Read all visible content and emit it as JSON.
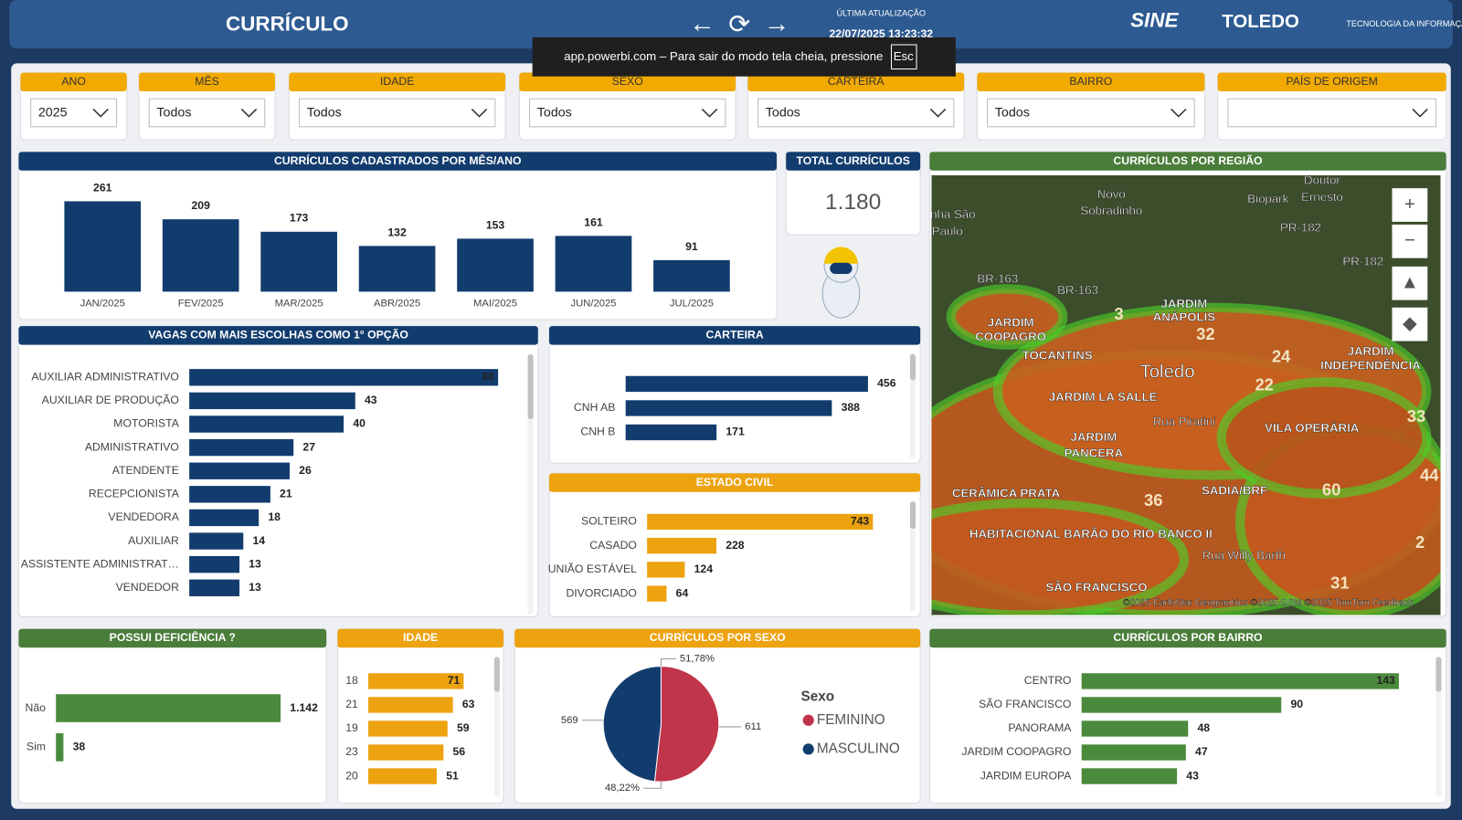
{
  "header": {
    "title": "CURRÍCULO",
    "update_label": "ÚLTIMA ATUALIZAÇÃO",
    "update_value": "22/07/2025 13:23:32",
    "logos": [
      "SINE",
      "TOLEDO",
      "TECNOLOGIA DA INFORMAÇÃO"
    ]
  },
  "toast": {
    "text": "app.powerbi.com – Para sair do modo tela cheia, pressione",
    "key": "Esc"
  },
  "filters": [
    {
      "label": "ANO",
      "value": "2025"
    },
    {
      "label": "MÊS",
      "value": "Todos"
    },
    {
      "label": "IDADE",
      "value": "Todos"
    },
    {
      "label": "SEXO",
      "value": "Todos"
    },
    {
      "label": "CARTEIRA",
      "value": "Todos"
    },
    {
      "label": "BAIRRO",
      "value": "Todos"
    },
    {
      "label": "PAÍS DE ORIGEM"
    }
  ],
  "kpi": {
    "title": "TOTAL CURRÍCULOS",
    "value": "1.180"
  },
  "map": {
    "title": "CURRÍCULOS POR REGIÃO",
    "labels": [
      "Doutor",
      "Ernesto",
      "Novo",
      "Sobradinho",
      "Biopark",
      "nha São",
      "Paulo",
      "PR-182",
      "PR-182",
      "BR-163",
      "BR-163",
      "JARDIM",
      "COOPAGRO",
      "JARDIM",
      "ANÁPOLIS",
      "TOCANTINS",
      "Toledo",
      "JARDIM",
      "INDEPENDÊNCIA",
      "JARDIM LA SALLE",
      "Rua Piratini",
      "VILA OPERÁRIA",
      "JARDIM",
      "PANCERA",
      "CERÂMICA PRATA",
      "SADIA/BRF",
      "HABITACIONAL BARÃO DO RIO BANCO II",
      "Rua Willy Barth",
      "SÃO FRANCISCO",
      "©2025 EarthStar Geographics ©2025 OSM ©2025 TomTom Feedback",
      "3",
      "32",
      "24",
      "22",
      "33",
      "36",
      "60",
      "44",
      "2",
      "31"
    ]
  },
  "chart_data": [
    {
      "type": "bar",
      "title": "CURRÍCULOS CADASTRADOS POR MÊS/ANO",
      "color": "#123c6e",
      "categories": [
        "JAN/2025",
        "FEV/2025",
        "MAR/2025",
        "ABR/2025",
        "MAI/2025",
        "JUN/2025",
        "JUL/2025"
      ],
      "values": [
        261,
        209,
        173,
        132,
        153,
        161,
        91
      ]
    },
    {
      "type": "hbar",
      "title": "VAGAS COM MAIS ESCOLHAS COMO 1° OPÇÃO",
      "color": "#123c6e",
      "categories": [
        "AUXILIAR ADMINISTRATIVO",
        "AUXILIAR DE PRODUÇÃO",
        "MOTORISTA",
        "ADMINISTRATIVO",
        "ATENDENTE",
        "RECEPCIONISTA",
        "VENDEDORA",
        "AUXILIAR",
        "ASSISTENTE ADMINISTRAT…",
        "VENDEDOR"
      ],
      "values": [
        80,
        43,
        40,
        27,
        26,
        21,
        18,
        14,
        13,
        13
      ]
    },
    {
      "type": "hbar",
      "title": "CARTEIRA",
      "color": "#123c6e",
      "categories": [
        null,
        "CNH AB",
        "CNH B"
      ],
      "values": [
        456,
        388,
        171
      ]
    },
    {
      "type": "hbar",
      "title": "ESTADO CIVIL",
      "color": "#eda20f",
      "categories": [
        "SOLTEIRO",
        "CASADO",
        "UNIÃO ESTÁVEL",
        "DIVORCIADO"
      ],
      "values": [
        743,
        228,
        124,
        64
      ]
    },
    {
      "type": "hbar",
      "title": "POSSUI DEFICIÊNCIA ?",
      "color": "#4a8a3c",
      "categories": [
        "Não",
        "Sim"
      ],
      "values": [
        1142,
        38
      ],
      "value_labels": [
        "1.142",
        "38"
      ]
    },
    {
      "type": "hbar",
      "title": "IDADE",
      "color": "#eda20f",
      "categories": [
        "18",
        "21",
        "19",
        "23",
        "20"
      ],
      "values": [
        71,
        63,
        59,
        56,
        51
      ]
    },
    {
      "type": "pie",
      "title": "CURRÍCULOS POR SEXO",
      "legend_title": "Sexo",
      "categories": [
        "FEMININO",
        "MASCULINO"
      ],
      "values": [
        611,
        569
      ],
      "colors": [
        "#c0354a",
        "#123c6e"
      ],
      "percentages": [
        51.78,
        48.22
      ],
      "percentage_labels": [
        "51,78%",
        "48,22%"
      ]
    },
    {
      "type": "hbar",
      "title": "CURRÍCULOS POR BAIRRO",
      "color": "#4a8a3c",
      "categories": [
        "CENTRO",
        "SÃO FRANCISCO",
        "PANORAMA",
        "JARDIM COOPAGRO",
        "JARDIM EUROPA"
      ],
      "values": [
        143,
        90,
        48,
        47,
        43
      ]
    }
  ]
}
